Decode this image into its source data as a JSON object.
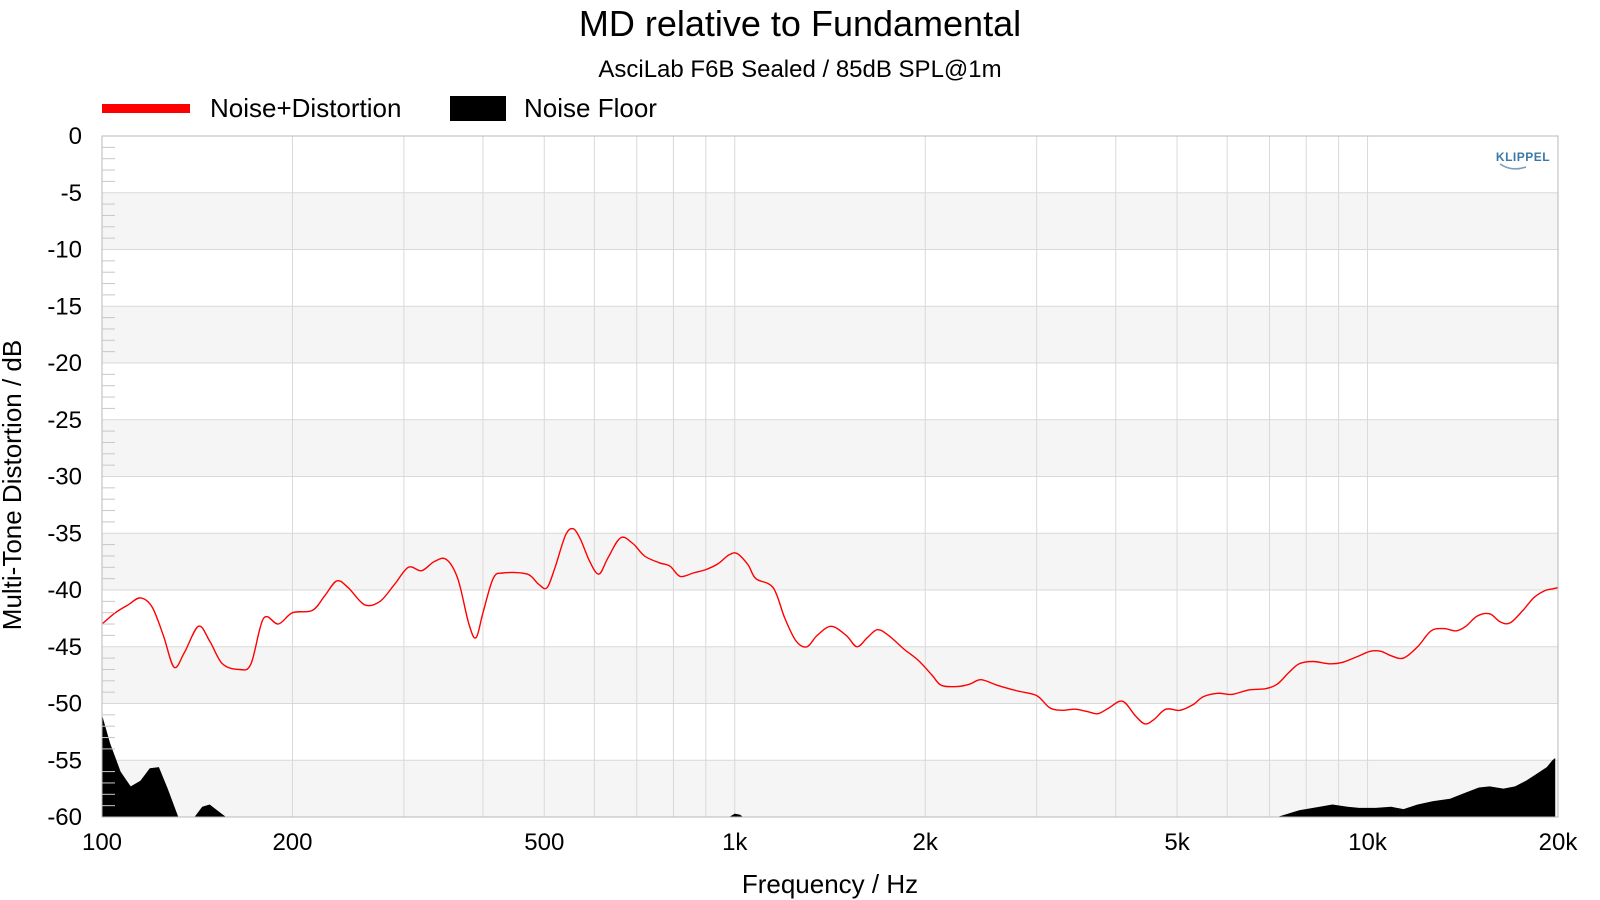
{
  "chart_data": {
    "type": "line",
    "title": "MD relative to Fundamental",
    "subtitle": "AsciLab F6B Sealed / 85dB SPL@1m",
    "xlabel": "Frequency / Hz",
    "ylabel": "Multi-Tone Distortion / dB",
    "xscale": "log",
    "xlim": [
      100,
      20000
    ],
    "ylim": [
      -60,
      0
    ],
    "grid": true,
    "legend_position": "top-left",
    "xticks": [
      {
        "value": 100,
        "label": "100"
      },
      {
        "value": 200,
        "label": "200"
      },
      {
        "value": 500,
        "label": "500"
      },
      {
        "value": 1000,
        "label": "1k"
      },
      {
        "value": 2000,
        "label": "2k"
      },
      {
        "value": 5000,
        "label": "5k"
      },
      {
        "value": 10000,
        "label": "10k"
      },
      {
        "value": 20000,
        "label": "20k"
      }
    ],
    "yticks": [
      0,
      -5,
      -10,
      -15,
      -20,
      -25,
      -30,
      -35,
      -40,
      -45,
      -50,
      -55,
      -60
    ],
    "logo_text": "KLIPPEL",
    "series": [
      {
        "name": "Noise+Distortion",
        "type": "line",
        "color": "#ff0000",
        "points": [
          [
            100,
            -43
          ],
          [
            105,
            -42
          ],
          [
            110,
            -41.3
          ],
          [
            115,
            -40.7
          ],
          [
            120,
            -41.5
          ],
          [
            125,
            -44
          ],
          [
            130,
            -46.8
          ],
          [
            135,
            -45.5
          ],
          [
            142,
            -43.2
          ],
          [
            148,
            -44.5
          ],
          [
            155,
            -46.5
          ],
          [
            165,
            -47
          ],
          [
            172,
            -46.5
          ],
          [
            180,
            -42.5
          ],
          [
            190,
            -43
          ],
          [
            200,
            -42
          ],
          [
            215,
            -41.8
          ],
          [
            225,
            -40.5
          ],
          [
            235,
            -39.2
          ],
          [
            245,
            -39.8
          ],
          [
            260,
            -41.3
          ],
          [
            275,
            -41
          ],
          [
            290,
            -39.5
          ],
          [
            305,
            -38
          ],
          [
            320,
            -38.3
          ],
          [
            335,
            -37.5
          ],
          [
            350,
            -37.3
          ],
          [
            365,
            -39
          ],
          [
            380,
            -43
          ],
          [
            390,
            -44.2
          ],
          [
            400,
            -42
          ],
          [
            415,
            -39
          ],
          [
            430,
            -38.5
          ],
          [
            470,
            -38.6
          ],
          [
            490,
            -39.5
          ],
          [
            505,
            -39.8
          ],
          [
            520,
            -38
          ],
          [
            540,
            -35.2
          ],
          [
            555,
            -34.6
          ],
          [
            570,
            -35.5
          ],
          [
            590,
            -37.5
          ],
          [
            610,
            -38.6
          ],
          [
            630,
            -37.2
          ],
          [
            660,
            -35.4
          ],
          [
            690,
            -35.9
          ],
          [
            720,
            -37
          ],
          [
            760,
            -37.6
          ],
          [
            790,
            -37.9
          ],
          [
            820,
            -38.8
          ],
          [
            860,
            -38.5
          ],
          [
            900,
            -38.2
          ],
          [
            940,
            -37.7
          ],
          [
            980,
            -36.9
          ],
          [
            1010,
            -36.8
          ],
          [
            1050,
            -37.8
          ],
          [
            1080,
            -39
          ],
          [
            1150,
            -39.8
          ],
          [
            1200,
            -42.5
          ],
          [
            1250,
            -44.5
          ],
          [
            1300,
            -45
          ],
          [
            1350,
            -44
          ],
          [
            1420,
            -43.2
          ],
          [
            1500,
            -44
          ],
          [
            1560,
            -45
          ],
          [
            1620,
            -44.2
          ],
          [
            1680,
            -43.5
          ],
          [
            1750,
            -44
          ],
          [
            1850,
            -45.2
          ],
          [
            1950,
            -46.2
          ],
          [
            2050,
            -47.5
          ],
          [
            2120,
            -48.4
          ],
          [
            2250,
            -48.5
          ],
          [
            2350,
            -48.3
          ],
          [
            2450,
            -47.9
          ],
          [
            2600,
            -48.4
          ],
          [
            2800,
            -48.9
          ],
          [
            3000,
            -49.3
          ],
          [
            3150,
            -50.4
          ],
          [
            3300,
            -50.6
          ],
          [
            3450,
            -50.5
          ],
          [
            3600,
            -50.7
          ],
          [
            3750,
            -50.9
          ],
          [
            3900,
            -50.4
          ],
          [
            4100,
            -49.8
          ],
          [
            4300,
            -51.1
          ],
          [
            4450,
            -51.8
          ],
          [
            4600,
            -51.4
          ],
          [
            4800,
            -50.5
          ],
          [
            5050,
            -50.6
          ],
          [
            5300,
            -50.1
          ],
          [
            5500,
            -49.4
          ],
          [
            5800,
            -49.1
          ],
          [
            6100,
            -49.2
          ],
          [
            6500,
            -48.8
          ],
          [
            6900,
            -48.7
          ],
          [
            7200,
            -48.3
          ],
          [
            7500,
            -47.3
          ],
          [
            7800,
            -46.5
          ],
          [
            8200,
            -46.3
          ],
          [
            8700,
            -46.5
          ],
          [
            9100,
            -46.4
          ],
          [
            9600,
            -45.9
          ],
          [
            10100,
            -45.4
          ],
          [
            10500,
            -45.4
          ],
          [
            10900,
            -45.8
          ],
          [
            11400,
            -46
          ],
          [
            12000,
            -45
          ],
          [
            12600,
            -43.6
          ],
          [
            13200,
            -43.4
          ],
          [
            13800,
            -43.6
          ],
          [
            14300,
            -43.2
          ],
          [
            14900,
            -42.3
          ],
          [
            15600,
            -42.1
          ],
          [
            16200,
            -42.8
          ],
          [
            16800,
            -42.9
          ],
          [
            17600,
            -41.8
          ],
          [
            18300,
            -40.7
          ],
          [
            19000,
            -40.1
          ],
          [
            19600,
            -39.9
          ],
          [
            20000,
            -39.8
          ]
        ]
      },
      {
        "name": "Noise Floor",
        "type": "area",
        "color": "#000000",
        "segments": [
          [
            [
              100,
              -51
            ],
            [
              103,
              -53.5
            ],
            [
              107,
              -56
            ],
            [
              111,
              -57.3
            ],
            [
              115,
              -56.8
            ],
            [
              119,
              -55.7
            ],
            [
              123,
              -55.6
            ],
            [
              127,
              -57.5
            ],
            [
              132,
              -60
            ]
          ],
          [
            [
              140,
              -60
            ],
            [
              144,
              -59.1
            ],
            [
              148,
              -58.9
            ],
            [
              152,
              -59.4
            ],
            [
              157,
              -60
            ]
          ],
          [
            [
              980,
              -60
            ],
            [
              1000,
              -59.7
            ],
            [
              1020,
              -59.8
            ],
            [
              1030,
              -60
            ]
          ],
          [
            [
              7200,
              -60
            ],
            [
              7800,
              -59.4
            ],
            [
              8400,
              -59.1
            ],
            [
              8800,
              -58.9
            ],
            [
              9300,
              -59.1
            ],
            [
              9700,
              -59.2
            ],
            [
              10300,
              -59.2
            ],
            [
              10900,
              -59.1
            ],
            [
              11400,
              -59.3
            ],
            [
              12000,
              -58.9
            ],
            [
              12700,
              -58.6
            ],
            [
              13500,
              -58.4
            ],
            [
              14200,
              -57.9
            ],
            [
              15000,
              -57.4
            ],
            [
              15600,
              -57.3
            ],
            [
              16400,
              -57.5
            ],
            [
              17100,
              -57.3
            ],
            [
              17800,
              -56.8
            ],
            [
              18500,
              -56.2
            ],
            [
              19200,
              -55.6
            ],
            [
              19600,
              -55
            ],
            [
              19800,
              -54.8
            ],
            [
              19800,
              -60
            ]
          ]
        ]
      }
    ]
  }
}
